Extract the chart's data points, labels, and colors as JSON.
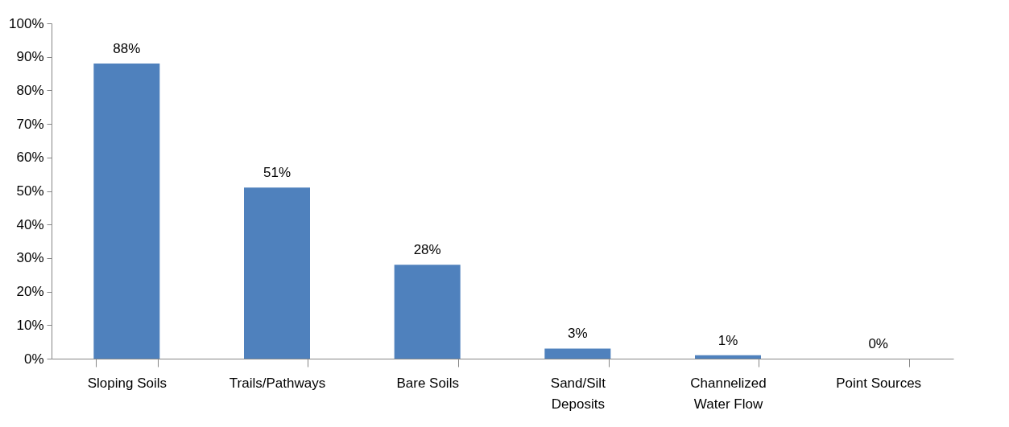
{
  "chart_data": {
    "type": "bar",
    "categories": [
      "Sloping Soils",
      "Trails/Pathways",
      "Bare Soils",
      "Sand/Silt Deposits",
      "Channelized Water Flow",
      "Point Sources"
    ],
    "values": [
      88,
      51,
      28,
      3,
      1,
      0
    ],
    "color": "#4f81bd",
    "data_labels": true,
    "value_labels": [
      "88%",
      "51%",
      "28%",
      "3%",
      "1%",
      "0%"
    ],
    "ylim": [
      0,
      100
    ],
    "yticks": [
      {
        "value": 0,
        "label": "0%"
      },
      {
        "value": 10,
        "label": "10%"
      },
      {
        "value": 20,
        "label": "20%"
      },
      {
        "value": 30,
        "label": "30%"
      },
      {
        "value": 40,
        "label": "40%"
      },
      {
        "value": 50,
        "label": "50%"
      },
      {
        "value": 60,
        "label": "60%"
      },
      {
        "value": 70,
        "label": "70%"
      },
      {
        "value": 80,
        "label": "80%"
      },
      {
        "value": 90,
        "label": "90%"
      },
      {
        "value": 100,
        "label": "100%"
      }
    ],
    "grid": false,
    "legend": false
  }
}
